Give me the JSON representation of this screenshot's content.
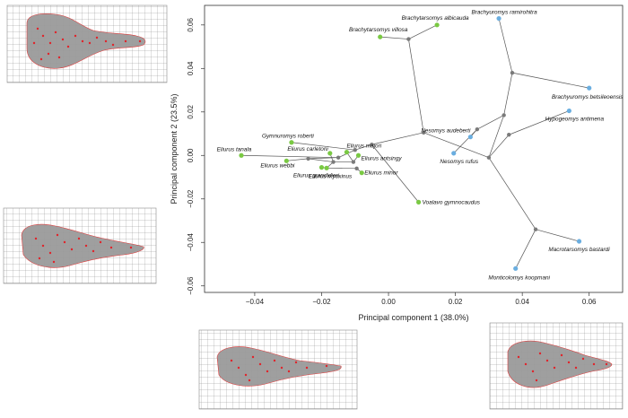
{
  "chart_data": {
    "type": "scatter",
    "title": "",
    "xlabel": "Principal component 1 (38.0%)",
    "ylabel": "Principal component 2 (23.5%)",
    "xlim": [
      -0.055,
      0.07
    ],
    "ylim": [
      -0.063,
      0.069
    ],
    "xticks": [
      -0.04,
      -0.02,
      0.0,
      0.02,
      0.04,
      0.06
    ],
    "xtick_labels": [
      "−0.04",
      "−0.02",
      "0.00",
      "0.02",
      "0.04",
      "0.06"
    ],
    "yticks": [
      -0.06,
      -0.04,
      -0.02,
      0.0,
      0.02,
      0.04,
      0.06
    ],
    "ytick_labels": [
      "−0.06",
      "−0.04",
      "−0.02",
      "0.00",
      "0.02",
      "0.04",
      "0.06"
    ],
    "grid": false,
    "colors": {
      "green": "#7ac943",
      "blue": "#6aaee0",
      "node": "#7a7a7a",
      "branch": "#555555"
    },
    "series": [
      {
        "name": "green",
        "points": [
          {
            "label": "Brachytarsomys albicauda",
            "x": 0.0145,
            "y": 0.06
          },
          {
            "label": "Brachytarsomys villosa",
            "x": -0.0025,
            "y": 0.0545
          },
          {
            "label": "Gymnuromys roberti",
            "x": -0.029,
            "y": 0.006
          },
          {
            "label": "Eliurus tanala",
            "x": -0.044,
            "y": 0.0
          },
          {
            "label": "Eliurus webbi",
            "x": -0.0305,
            "y": -0.0025
          },
          {
            "label": "Eliurus carletoni",
            "x": -0.0175,
            "y": 0.001
          },
          {
            "label": "Eliurus majori",
            "x": -0.0125,
            "y": 0.0015
          },
          {
            "label": "Eliurus antsingy",
            "x": -0.009,
            "y": 0.0
          },
          {
            "label": "Eliurus grandidieri",
            "x": -0.02,
            "y": -0.0055
          },
          {
            "label": "Eliurus myoxinus",
            "x": -0.0185,
            "y": -0.0058
          },
          {
            "label": "Eliurus minor",
            "x": -0.008,
            "y": -0.008
          },
          {
            "label": "Voalavo gymnocaudus",
            "x": 0.009,
            "y": -0.0215
          }
        ]
      },
      {
        "name": "blue",
        "points": [
          {
            "label": "Brachyuromys ramirohitra",
            "x": 0.033,
            "y": 0.063
          },
          {
            "label": "Brachyuromys betsileoensis",
            "x": 0.06,
            "y": 0.031
          },
          {
            "label": "Hypogeomys antimena",
            "x": 0.054,
            "y": 0.0205
          },
          {
            "label": "Nesomys audeberti",
            "x": 0.0245,
            "y": 0.0085
          },
          {
            "label": "Nesomys rufus",
            "x": 0.0195,
            "y": 0.001
          },
          {
            "label": "Macrotarsomys bastardi",
            "x": 0.057,
            "y": -0.0395
          },
          {
            "label": "Monticolomys koopmani",
            "x": 0.038,
            "y": -0.052
          }
        ]
      }
    ],
    "internal_nodes": [
      {
        "x": 0.006,
        "y": 0.0535
      },
      {
        "x": 0.0105,
        "y": 0.0105
      },
      {
        "x": -0.005,
        "y": 0.005
      },
      {
        "x": -0.01,
        "y": 0.0025
      },
      {
        "x": -0.015,
        "y": -0.001
      },
      {
        "x": -0.024,
        "y": -0.0015
      },
      {
        "x": -0.0165,
        "y": -0.003
      },
      {
        "x": -0.0105,
        "y": -0.003
      },
      {
        "x": -0.0095,
        "y": -0.006
      },
      {
        "x": 0.03,
        "y": -0.001
      },
      {
        "x": 0.0345,
        "y": 0.0185
      },
      {
        "x": 0.0265,
        "y": 0.012
      },
      {
        "x": 0.037,
        "y": 0.038
      },
      {
        "x": 0.044,
        "y": -0.034
      },
      {
        "x": 0.036,
        "y": 0.0095
      }
    ],
    "tree_edges": [
      [
        [
          0.0145,
          0.06
        ],
        [
          0.006,
          0.0535
        ]
      ],
      [
        [
          -0.0025,
          0.0545
        ],
        [
          0.006,
          0.0535
        ]
      ],
      [
        [
          0.006,
          0.0535
        ],
        [
          0.0105,
          0.0105
        ]
      ],
      [
        [
          0.0105,
          0.0105
        ],
        [
          -0.005,
          0.005
        ]
      ],
      [
        [
          0.0105,
          0.0105
        ],
        [
          0.03,
          -0.001
        ]
      ],
      [
        [
          -0.005,
          0.005
        ],
        [
          -0.01,
          0.0025
        ]
      ],
      [
        [
          -0.01,
          0.0025
        ],
        [
          -0.029,
          0.006
        ]
      ],
      [
        [
          -0.01,
          0.0025
        ],
        [
          -0.015,
          -0.001
        ]
      ],
      [
        [
          -0.015,
          -0.001
        ],
        [
          -0.044,
          0.0
        ]
      ],
      [
        [
          -0.015,
          -0.001
        ],
        [
          -0.024,
          -0.0015
        ]
      ],
      [
        [
          -0.024,
          -0.0015
        ],
        [
          -0.0305,
          -0.0025
        ]
      ],
      [
        [
          -0.024,
          -0.0015
        ],
        [
          -0.0165,
          -0.003
        ]
      ],
      [
        [
          -0.0165,
          -0.003
        ],
        [
          -0.0175,
          0.001
        ]
      ],
      [
        [
          -0.0165,
          -0.003
        ],
        [
          -0.0105,
          -0.003
        ]
      ],
      [
        [
          -0.0105,
          -0.003
        ],
        [
          -0.0125,
          0.0015
        ]
      ],
      [
        [
          -0.0105,
          -0.003
        ],
        [
          -0.009,
          0.0
        ]
      ],
      [
        [
          -0.0165,
          -0.003
        ],
        [
          -0.0185,
          -0.0058
        ]
      ],
      [
        [
          -0.0185,
          -0.0058
        ],
        [
          -0.02,
          -0.0055
        ]
      ],
      [
        [
          -0.0185,
          -0.0058
        ],
        [
          -0.0095,
          -0.006
        ]
      ],
      [
        [
          -0.0095,
          -0.006
        ],
        [
          -0.008,
          -0.008
        ]
      ],
      [
        [
          -0.005,
          0.005
        ],
        [
          0.009,
          -0.0215
        ]
      ],
      [
        [
          0.03,
          -0.001
        ],
        [
          0.0345,
          0.0185
        ]
      ],
      [
        [
          0.03,
          -0.001
        ],
        [
          0.044,
          -0.034
        ]
      ],
      [
        [
          0.0345,
          0.0185
        ],
        [
          0.037,
          0.038
        ]
      ],
      [
        [
          0.037,
          0.038
        ],
        [
          0.033,
          0.063
        ]
      ],
      [
        [
          0.037,
          0.038
        ],
        [
          0.06,
          0.031
        ]
      ],
      [
        [
          0.0345,
          0.0185
        ],
        [
          0.0265,
          0.012
        ]
      ],
      [
        [
          0.0265,
          0.012
        ],
        [
          0.0245,
          0.0085
        ]
      ],
      [
        [
          0.0265,
          0.012
        ],
        [
          0.0195,
          0.001
        ]
      ],
      [
        [
          0.03,
          -0.001
        ],
        [
          0.036,
          0.0095
        ]
      ],
      [
        [
          0.036,
          0.0095
        ],
        [
          0.054,
          0.0205
        ]
      ],
      [
        [
          0.044,
          -0.034
        ],
        [
          0.057,
          -0.0395
        ]
      ],
      [
        [
          0.044,
          -0.034
        ],
        [
          0.038,
          -0.052
        ]
      ]
    ]
  }
}
